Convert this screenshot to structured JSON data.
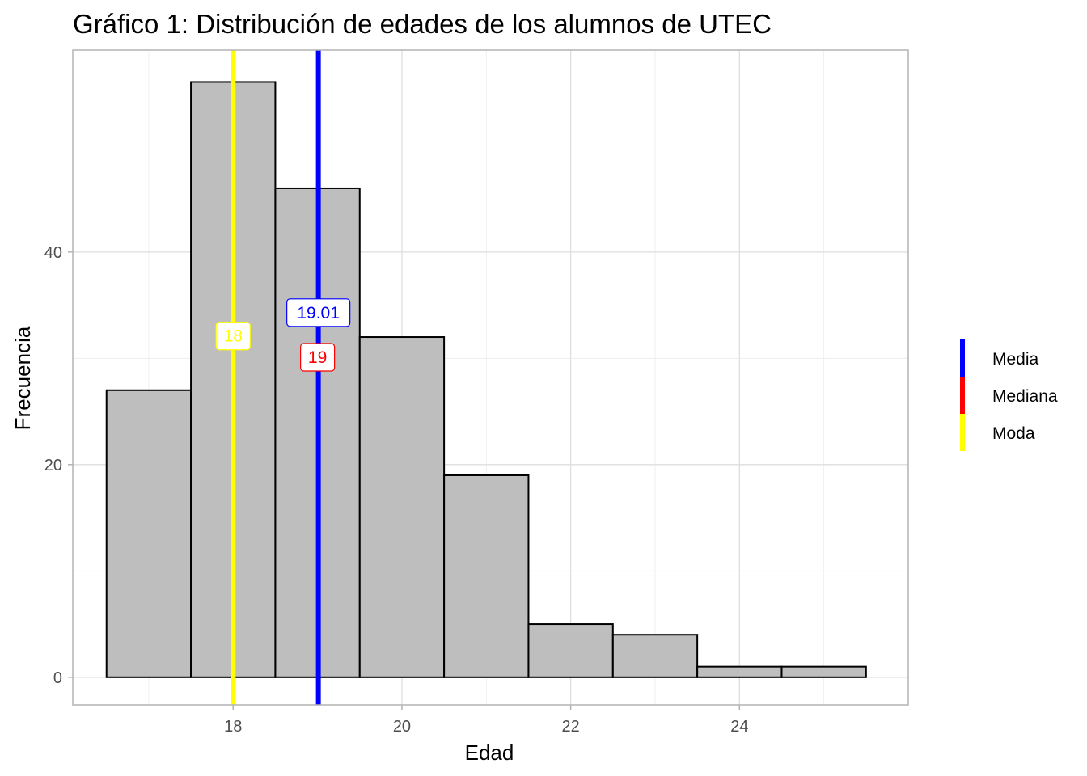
{
  "chart_data": {
    "type": "bar",
    "title": "Gráfico 1: Distribución de edades de los alumnos de UTEC",
    "xlabel": "Edad",
    "ylabel": "Frecuencia",
    "categories": [
      17,
      18,
      19,
      20,
      21,
      22,
      23,
      24,
      25
    ],
    "values": [
      27,
      56,
      46,
      32,
      19,
      5,
      4,
      1,
      1
    ],
    "bin_width": 1,
    "xlim": [
      16.1,
      26.0
    ],
    "ylim": [
      -2.6,
      59
    ],
    "x_ticks": [
      18,
      20,
      22,
      24
    ],
    "y_ticks": [
      0,
      20,
      40
    ],
    "grid": true,
    "bar_fill": "#bebebe",
    "bar_stroke": "#000000",
    "reference_lines": [
      {
        "name": "Media",
        "value": 19.01,
        "label": "19.01",
        "label_y": 34.3,
        "color": "#0000ff"
      },
      {
        "name": "Mediana",
        "value": 19,
        "label": "19",
        "label_y": 30.1,
        "color": "#ff0000",
        "hidden_line": true
      },
      {
        "name": "Moda",
        "value": 18,
        "label": "18",
        "label_y": 32.1,
        "color": "#ffff00"
      }
    ],
    "legend": {
      "position": "right",
      "entries": [
        {
          "label": "Media",
          "color": "#0000ff"
        },
        {
          "label": "Mediana",
          "color": "#ff0000"
        },
        {
          "label": "Moda",
          "color": "#ffff00"
        }
      ]
    }
  }
}
